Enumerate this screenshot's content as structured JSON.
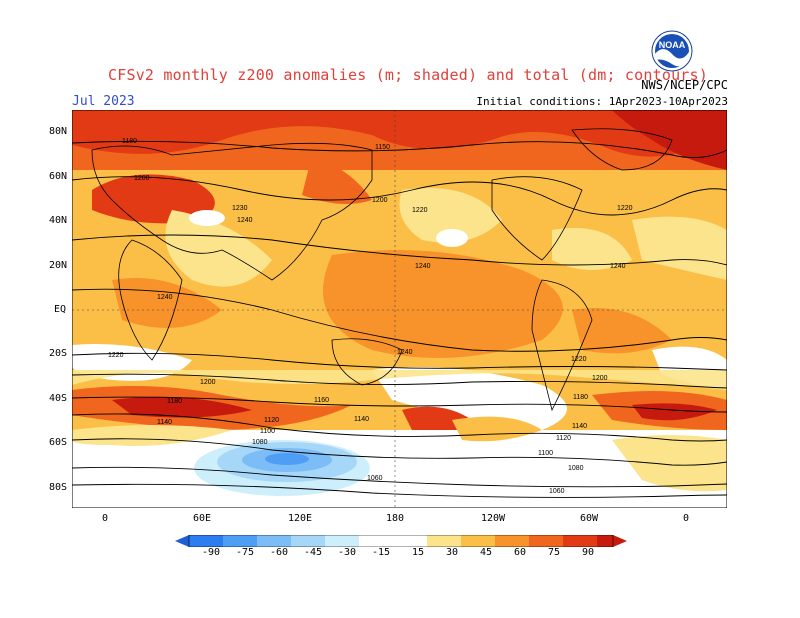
{
  "header": {
    "title": "CFSv2 monthly z200 anomalies (m; shaded) and total (dm; contours)",
    "month": "Jul 2023",
    "agency": "NWS/NCEP/CPC",
    "initial_conditions": "Initial conditions: 1Apr2023-10Apr2023",
    "logo_text": "NOAA"
  },
  "axes": {
    "lat_labels": [
      "80N",
      "60N",
      "40N",
      "20N",
      "EQ",
      "20S",
      "40S",
      "60S",
      "80S"
    ],
    "lon_labels": [
      "0",
      "60E",
      "120E",
      "180",
      "120W",
      "60W",
      "0"
    ]
  },
  "contour_labels": [
    "1180",
    "1150",
    "1200",
    "1230",
    "1240",
    "1240",
    "1220",
    "1200",
    "1220",
    "1240",
    "1240",
    "1240",
    "1220",
    "1200",
    "1180",
    "1140",
    "1120",
    "1100",
    "1080",
    "1060",
    "1160",
    "1140",
    "1220",
    "1200",
    "1180",
    "1140",
    "1120",
    "1100",
    "1080",
    "1060"
  ],
  "colorbar": {
    "labels": [
      "-90",
      "-75",
      "-60",
      "-45",
      "-30",
      "-15",
      "15",
      "30",
      "45",
      "60",
      "75",
      "90"
    ],
    "colors": [
      "#1e5fd6",
      "#2d7cf0",
      "#4f9ef5",
      "#7cbcf7",
      "#a6d7f8",
      "#cdeffb",
      "#ffffff",
      "#fce48c",
      "#fbbf48",
      "#f8922a",
      "#f1661e",
      "#e13a15",
      "#c71a0e"
    ]
  }
}
